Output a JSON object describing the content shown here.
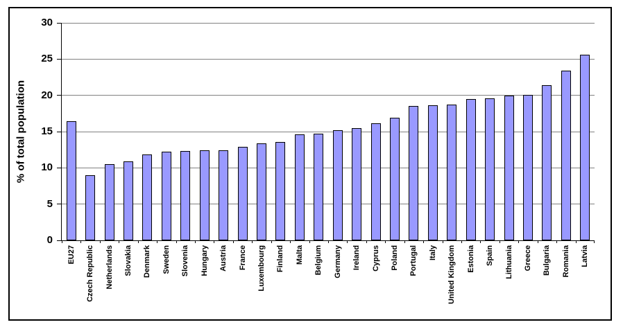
{
  "chart_data": {
    "type": "bar",
    "title": "",
    "xlabel": "",
    "ylabel": "% of total population",
    "ylim": [
      0,
      30
    ],
    "yticks": [
      0,
      5,
      10,
      15,
      20,
      25,
      30
    ],
    "grid": true,
    "legend": "none",
    "categories": [
      "EU27",
      "Czech Republic",
      "Netherlands",
      "Slovakia",
      "Denmark",
      "Sweden",
      "Slovenia",
      "Hungary",
      "Austria",
      "France",
      "Luxembourg",
      "Finland",
      "Malta",
      "Belgium",
      "Germany",
      "Ireland",
      "Cyprus",
      "Poland",
      "Portugal",
      "Italy",
      "United Kingdom",
      "Estonia",
      "Spain",
      "Lithuania",
      "Greece",
      "Bulgaria",
      "Romania",
      "Latvia"
    ],
    "values": [
      16.4,
      9.0,
      10.5,
      10.9,
      11.8,
      12.2,
      12.3,
      12.4,
      12.4,
      12.9,
      13.4,
      13.6,
      14.6,
      14.7,
      15.2,
      15.5,
      16.1,
      16.9,
      18.5,
      18.6,
      18.7,
      19.5,
      19.6,
      20.0,
      20.1,
      21.4,
      23.4,
      25.6
    ],
    "colors": {
      "bar_fill": "#9999FF",
      "bar_border": "#000000",
      "gridline": "#808080",
      "axis": "#000000",
      "background": "#FFFFFF"
    }
  }
}
